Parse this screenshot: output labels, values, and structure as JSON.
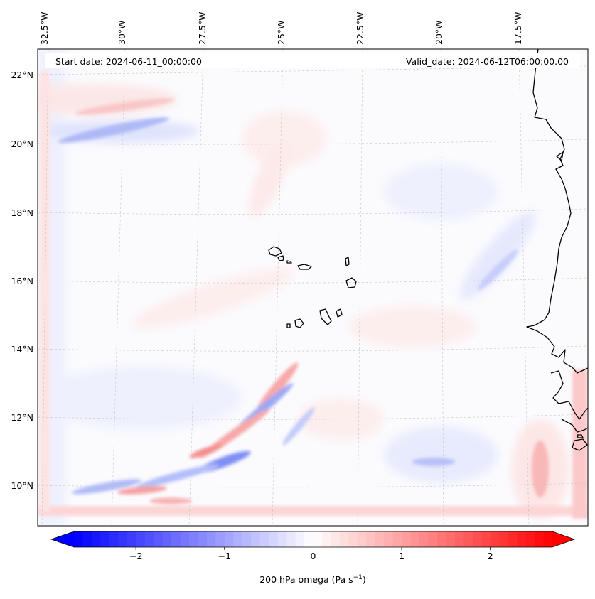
{
  "map": {
    "start_date": "Start date: 2024-06-11_00:00:00",
    "valid_date": "Valid_date: 2024-06-12T06:00:00.00",
    "lon_labels": [
      "32.5°W",
      "30°W",
      "27.5°W",
      "25°W",
      "22.5°W",
      "20°W",
      "17.5°W"
    ],
    "lat_labels": [
      "22°N",
      "20°N",
      "18°N",
      "16°N",
      "14°N",
      "12°N",
      "10°N"
    ],
    "colorbar": {
      "label_text": "200 hPa omega (Pa s",
      "label_sup": "−1",
      "label_close": ")",
      "ticks": [
        "−2",
        "−1",
        "0",
        "1",
        "2"
      ],
      "min": -2.7,
      "max": 2.7,
      "tick_values": [
        -2,
        -1,
        0,
        1,
        2
      ]
    },
    "colors": {
      "negative": "#0000ff",
      "neutral": "#ffffff",
      "positive": "#ff0000",
      "coast": "#000000",
      "grid": "#bbbbbb"
    }
  }
}
